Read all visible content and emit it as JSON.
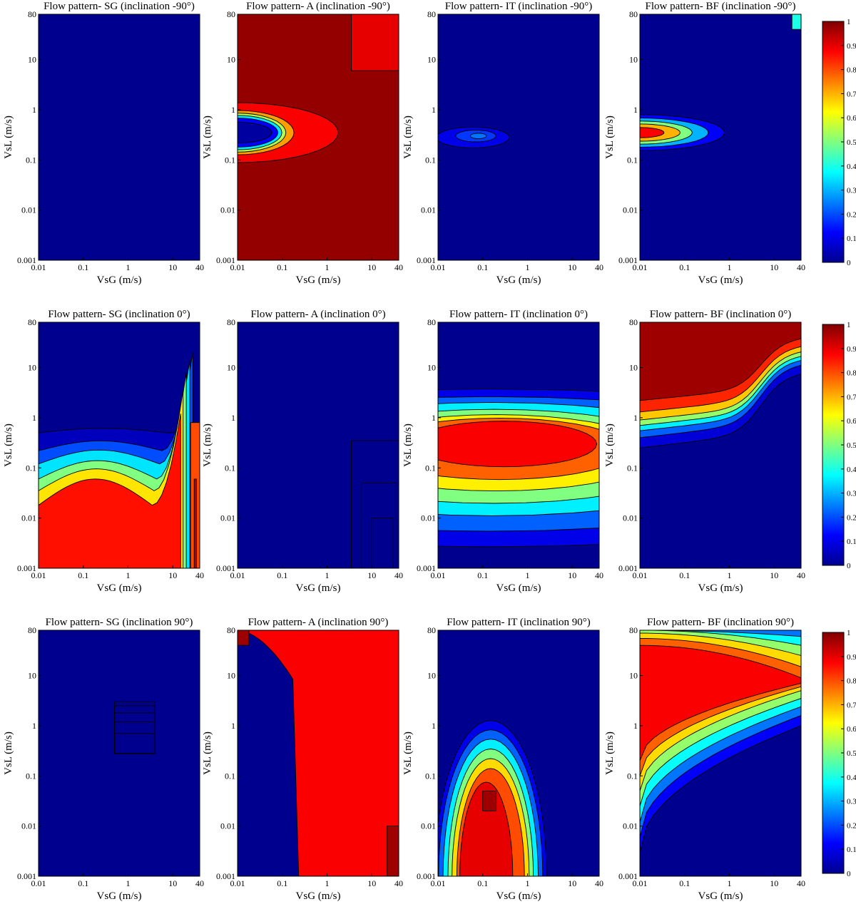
{
  "colormap": {
    "name": "jet",
    "stops": [
      "#00008f",
      "#0000ff",
      "#00ffff",
      "#ffff00",
      "#ff0000",
      "#800000"
    ]
  },
  "chart_data": [
    {
      "type": "heatmap",
      "title": "Flow pattern- SG (inclination -90°)",
      "xlabel": "VsG (m/s)",
      "ylabel": "VsL (m/s)",
      "xscale": "log",
      "yscale": "log",
      "xlim": [
        0.01,
        40
      ],
      "ylim": [
        0.001,
        80
      ],
      "xticks": [
        "0.01",
        "0.1",
        "1",
        "10",
        "40"
      ],
      "yticks": [
        "0.001",
        "0.01",
        "0.1",
        "1",
        "10",
        "80"
      ],
      "zlim": [
        0,
        1
      ],
      "regions": []
    },
    {
      "type": "heatmap",
      "title": "Flow pattern- A (inclination -90°)",
      "xlabel": "VsG (m/s)",
      "ylabel": "VsL (m/s)",
      "xscale": "log",
      "yscale": "log",
      "xlim": [
        0.01,
        40
      ],
      "ylim": [
        0.001,
        80
      ],
      "xticks": [
        "0.01",
        "0.1",
        "1",
        "10",
        "40"
      ],
      "yticks": [
        "0.001",
        "0.01",
        "0.1",
        "1",
        "10",
        "80"
      ],
      "zlim": [
        0,
        1
      ],
      "regions": [
        {
          "shape": "rect",
          "x": [
            0.01,
            40
          ],
          "y": [
            0.001,
            80
          ],
          "v": 0.98
        },
        {
          "shape": "rect",
          "x": [
            3.5,
            40
          ],
          "y": [
            6,
            80
          ],
          "v": 0.9
        },
        {
          "shape": "ellipse",
          "cx": 0.01,
          "cy": 0.35,
          "rx": 2.5,
          "ry": 3.6,
          "v": 0.88
        },
        {
          "shape": "ellipse",
          "cx": 0.01,
          "cy": 0.35,
          "rx": 1.4,
          "ry": 2.1,
          "v": 0.72
        },
        {
          "shape": "ellipse",
          "cx": 0.01,
          "cy": 0.35,
          "rx": 1.2,
          "ry": 1.7,
          "v": 0.55
        },
        {
          "shape": "ellipse",
          "cx": 0.01,
          "cy": 0.35,
          "rx": 1.1,
          "ry": 1.4,
          "v": 0.35
        },
        {
          "shape": "ellipse",
          "cx": 0.01,
          "cy": 0.35,
          "rx": 1.0,
          "ry": 1.1,
          "v": 0.12
        },
        {
          "shape": "ellipse",
          "cx": 0.01,
          "cy": 0.35,
          "rx": 0.85,
          "ry": 0.7,
          "v": 0.02
        }
      ]
    },
    {
      "type": "heatmap",
      "title": "Flow pattern- IT (inclination -90°)",
      "xlabel": "VsG (m/s)",
      "ylabel": "VsL (m/s)",
      "xscale": "log",
      "yscale": "log",
      "xlim": [
        0.01,
        40
      ],
      "ylim": [
        0.001,
        80
      ],
      "xticks": [
        "0.01",
        "0.1",
        "1",
        "10",
        "40"
      ],
      "yticks": [
        "0.001",
        "0.01",
        "0.1",
        "1",
        "10",
        "80"
      ],
      "zlim": [
        0,
        1
      ],
      "regions": [
        {
          "shape": "ellipse",
          "cx": 0.06,
          "cy": 0.28,
          "rx": 0.9,
          "ry": 0.7,
          "v": 0.1
        },
        {
          "shape": "ellipse",
          "cx": 0.07,
          "cy": 0.3,
          "rx": 0.5,
          "ry": 0.35,
          "v": 0.18
        },
        {
          "shape": "ellipse",
          "cx": 0.08,
          "cy": 0.3,
          "rx": 0.2,
          "ry": 0.15,
          "v": 0.24
        }
      ]
    },
    {
      "type": "heatmap",
      "title": "Flow pattern- BF (inclination -90°)",
      "xlabel": "VsG (m/s)",
      "ylabel": "VsL (m/s)",
      "xscale": "log",
      "yscale": "log",
      "xlim": [
        0.01,
        40
      ],
      "ylim": [
        0.001,
        80
      ],
      "xticks": [
        "0.01",
        "0.1",
        "1",
        "10",
        "40"
      ],
      "yticks": [
        "0.001",
        "0.01",
        "0.1",
        "1",
        "10",
        "80"
      ],
      "zlim": [
        0,
        1
      ],
      "regions": [
        {
          "shape": "ellipse",
          "cx": 0.01,
          "cy": 0.35,
          "rx": 2.1,
          "ry": 1.5,
          "v": 0.12
        },
        {
          "shape": "ellipse",
          "cx": 0.01,
          "cy": 0.35,
          "rx": 1.7,
          "ry": 1.1,
          "v": 0.3
        },
        {
          "shape": "ellipse",
          "cx": 0.01,
          "cy": 0.35,
          "rx": 1.3,
          "ry": 0.8,
          "v": 0.5
        },
        {
          "shape": "ellipse",
          "cx": 0.01,
          "cy": 0.35,
          "rx": 1.0,
          "ry": 0.55,
          "v": 0.7
        },
        {
          "shape": "ellipse",
          "cx": 0.01,
          "cy": 0.35,
          "rx": 0.6,
          "ry": 0.3,
          "v": 0.88
        },
        {
          "shape": "rect",
          "x": [
            25,
            40
          ],
          "y": [
            40,
            80
          ],
          "v": 0.4
        }
      ]
    },
    {
      "type": "heatmap",
      "title": "Flow pattern- SG (inclination 0°)",
      "xlabel": "VsG (m/s)",
      "ylabel": "VsL (m/s)",
      "xscale": "log",
      "yscale": "log",
      "xlim": [
        0.01,
        40
      ],
      "ylim": [
        0.001,
        80
      ],
      "xticks": [
        "0.01",
        "0.1",
        "1",
        "10",
        "40"
      ],
      "yticks": [
        "0.001",
        "0.01",
        "0.1",
        "1",
        "10",
        "80"
      ],
      "zlim": [
        0,
        1
      ],
      "regions": [
        {
          "shape": "ushape",
          "xmin": 0.01,
          "xmax": 40,
          "base": [
            0.001,
            0.5,
            0.001,
            0.5
          ],
          "v": 0.05
        },
        {
          "shape": "ushape",
          "xmin": 0.01,
          "xmax": 28,
          "base": [
            0.001,
            0.22,
            0.001,
            20
          ],
          "v": 0.2
        },
        {
          "shape": "ushape",
          "xmin": 0.01,
          "xmax": 24,
          "base": [
            0.001,
            0.12,
            0.001,
            14
          ],
          "v": 0.35
        },
        {
          "shape": "ushape",
          "xmin": 0.01,
          "xmax": 20,
          "base": [
            0.001,
            0.06,
            0.001,
            8
          ],
          "v": 0.5
        },
        {
          "shape": "ushape",
          "xmin": 0.01,
          "xmax": 17,
          "base": [
            0.001,
            0.035,
            0.001,
            3.5
          ],
          "v": 0.65
        },
        {
          "shape": "ushape",
          "xmin": 0.01,
          "xmax": 15,
          "base": [
            0.001,
            0.018,
            0.001,
            1.2
          ],
          "v": 0.86
        },
        {
          "shape": "rect",
          "x": [
            25,
            40
          ],
          "y": [
            0.001,
            0.8
          ],
          "v": 0.8
        },
        {
          "shape": "rect",
          "x": [
            30,
            34
          ],
          "y": [
            0.001,
            0.06
          ],
          "v": 0.95
        }
      ]
    },
    {
      "type": "heatmap",
      "title": "Flow pattern- A (inclination 0°)",
      "xlabel": "VsG (m/s)",
      "ylabel": "VsL (m/s)",
      "xscale": "log",
      "yscale": "log",
      "xlim": [
        0.01,
        40
      ],
      "ylim": [
        0.001,
        80
      ],
      "xticks": [
        "0.01",
        "0.1",
        "1",
        "10",
        "40"
      ],
      "yticks": [
        "0.001",
        "0.01",
        "0.1",
        "1",
        "10",
        "80"
      ],
      "zlim": [
        0,
        1
      ],
      "regions": [],
      "outlines": [
        {
          "x": [
            3.5,
            40
          ],
          "y": [
            0.001,
            0.35
          ]
        },
        {
          "x": [
            6,
            35
          ],
          "y": [
            0.001,
            0.05
          ]
        },
        {
          "x": [
            10,
            30
          ],
          "y": [
            0.001,
            0.01
          ]
        }
      ]
    },
    {
      "type": "heatmap",
      "title": "Flow pattern- IT (inclination 0°)",
      "xlabel": "VsG (m/s)",
      "ylabel": "VsL (m/s)",
      "xscale": "log",
      "yscale": "log",
      "xlim": [
        0.01,
        40
      ],
      "ylim": [
        0.001,
        80
      ],
      "xticks": [
        "0.01",
        "0.1",
        "1",
        "10",
        "40"
      ],
      "yticks": [
        "0.001",
        "0.01",
        "0.1",
        "1",
        "10",
        "80"
      ],
      "zlim": [
        0,
        1
      ],
      "regions": [
        {
          "shape": "ellipse",
          "cx": 0.12,
          "cy": 0.1,
          "rx": 12,
          "ry": 55,
          "v": 0.1
        },
        {
          "shape": "ellipse",
          "cx": 0.14,
          "cy": 0.12,
          "rx": 9,
          "ry": 30,
          "v": 0.22
        },
        {
          "shape": "ellipse",
          "cx": 0.16,
          "cy": 0.15,
          "rx": 6.5,
          "ry": 17,
          "v": 0.36
        },
        {
          "shape": "ellipse",
          "cx": 0.18,
          "cy": 0.17,
          "rx": 5,
          "ry": 10,
          "v": 0.5
        },
        {
          "shape": "ellipse",
          "cx": 0.2,
          "cy": 0.2,
          "rx": 4,
          "ry": 6,
          "v": 0.64
        },
        {
          "shape": "ellipse",
          "cx": 0.24,
          "cy": 0.24,
          "rx": 3.2,
          "ry": 3.8,
          "v": 0.78
        },
        {
          "shape": "ellipse",
          "cx": 0.3,
          "cy": 0.3,
          "rx": 2.3,
          "ry": 2.2,
          "v": 0.88
        }
      ]
    },
    {
      "type": "heatmap",
      "title": "Flow pattern- BF (inclination 0°)",
      "xlabel": "VsG (m/s)",
      "ylabel": "VsL (m/s)",
      "xscale": "log",
      "yscale": "log",
      "xlim": [
        0.01,
        40
      ],
      "ylim": [
        0.001,
        80
      ],
      "xticks": [
        "0.01",
        "0.1",
        "1",
        "10",
        "40"
      ],
      "yticks": [
        "0.001",
        "0.01",
        "0.1",
        "1",
        "10",
        "80"
      ],
      "zlim": [
        0,
        1
      ],
      "regions": [
        {
          "shape": "step",
          "x0": 0.01,
          "x1": 40,
          "y0": 0.25,
          "y1": 8,
          "v": 0.08
        },
        {
          "shape": "step",
          "x0": 0.01,
          "x1": 40,
          "y0": 0.4,
          "y1": 12,
          "v": 0.22
        },
        {
          "shape": "step",
          "x0": 0.01,
          "x1": 40,
          "y0": 0.55,
          "y1": 15,
          "v": 0.36
        },
        {
          "shape": "step",
          "x0": 0.01,
          "x1": 40,
          "y0": 0.7,
          "y1": 18,
          "v": 0.52
        },
        {
          "shape": "step",
          "x0": 0.01,
          "x1": 40,
          "y0": 0.9,
          "y1": 22,
          "v": 0.68
        },
        {
          "shape": "step",
          "x0": 0.01,
          "x1": 40,
          "y0": 1.3,
          "y1": 28,
          "v": 0.84
        },
        {
          "shape": "step",
          "x0": 0.01,
          "x1": 40,
          "y0": 2.2,
          "y1": 40,
          "v": 0.97
        }
      ]
    },
    {
      "type": "heatmap",
      "title": "Flow pattern- SG (inclination 90°)",
      "xlabel": "VsG (m/s)",
      "ylabel": "VsL (m/s)",
      "xscale": "log",
      "yscale": "log",
      "xlim": [
        0.01,
        40
      ],
      "ylim": [
        0.001,
        80
      ],
      "xticks": [
        "0.01",
        "0.1",
        "1",
        "10",
        "40"
      ],
      "yticks": [
        "0.001",
        "0.01",
        "0.1",
        "1",
        "10",
        "80"
      ],
      "zlim": [
        0,
        1
      ],
      "regions": [],
      "outlines": [
        {
          "x": [
            0.5,
            4
          ],
          "y": [
            0.28,
            3
          ]
        },
        {
          "x": [
            0.5,
            4
          ],
          "y": [
            0.28,
            2.5
          ]
        },
        {
          "x": [
            0.5,
            4
          ],
          "y": [
            0.28,
            1.8
          ]
        },
        {
          "x": [
            0.5,
            4
          ],
          "y": [
            0.28,
            1.2
          ]
        },
        {
          "x": [
            0.5,
            4
          ],
          "y": [
            0.28,
            0.7
          ]
        }
      ]
    },
    {
      "type": "heatmap",
      "title": "Flow pattern- A (inclination 90°)",
      "xlabel": "VsG (m/s)",
      "ylabel": "VsL (m/s)",
      "xscale": "log",
      "yscale": "log",
      "xlim": [
        0.01,
        40
      ],
      "ylim": [
        0.001,
        80
      ],
      "xticks": [
        "0.01",
        "0.1",
        "1",
        "10",
        "40"
      ],
      "yticks": [
        "0.001",
        "0.01",
        "0.1",
        "1",
        "10",
        "80"
      ],
      "zlim": [
        0,
        1
      ],
      "regions": [
        {
          "shape": "arc",
          "v": 0.12,
          "spread": 1.0
        },
        {
          "shape": "arc",
          "v": 0.22,
          "spread": 0.8
        },
        {
          "shape": "arc",
          "v": 0.4,
          "spread": 0.62
        },
        {
          "shape": "arc",
          "v": 0.55,
          "spread": 0.5
        },
        {
          "shape": "arc",
          "v": 0.72,
          "spread": 0.38
        },
        {
          "shape": "arc",
          "v": 0.88,
          "spread": 0.26
        },
        {
          "shape": "rect",
          "x": [
            22,
            40
          ],
          "y": [
            0.001,
            0.01
          ],
          "v": 0.97
        },
        {
          "shape": "rect",
          "x": [
            0.01,
            0.018
          ],
          "y": [
            40,
            80
          ],
          "v": 0.97
        }
      ]
    },
    {
      "type": "heatmap",
      "title": "Flow pattern- IT (inclination 90°)",
      "xlabel": "VsG (m/s)",
      "ylabel": "VsL (m/s)",
      "xscale": "log",
      "yscale": "log",
      "xlim": [
        0.01,
        40
      ],
      "ylim": [
        0.001,
        80
      ],
      "xticks": [
        "0.01",
        "0.1",
        "1",
        "10",
        "40"
      ],
      "yticks": [
        "0.001",
        "0.01",
        "0.1",
        "1",
        "10",
        "80"
      ],
      "zlim": [
        0,
        1
      ],
      "regions": [
        {
          "shape": "lobe",
          "cx": 0.15,
          "cy": 0.01,
          "rx": 60,
          "ry": 900,
          "v": 0.1
        },
        {
          "shape": "lobe",
          "cx": 0.15,
          "cy": 0.01,
          "rx": 45,
          "ry": 600,
          "v": 0.22
        },
        {
          "shape": "lobe",
          "cx": 0.15,
          "cy": 0.01,
          "rx": 32,
          "ry": 400,
          "v": 0.36
        },
        {
          "shape": "lobe",
          "cx": 0.15,
          "cy": 0.01,
          "rx": 22,
          "ry": 260,
          "v": 0.5
        },
        {
          "shape": "lobe",
          "cx": 0.15,
          "cy": 0.01,
          "rx": 16,
          "ry": 170,
          "v": 0.66
        },
        {
          "shape": "lobe",
          "cx": 0.15,
          "cy": 0.01,
          "rx": 11,
          "ry": 110,
          "v": 0.8
        },
        {
          "shape": "lobe",
          "cx": 0.12,
          "cy": 0.01,
          "rx": 6,
          "ry": 60,
          "v": 0.9
        },
        {
          "shape": "rect",
          "x": [
            0.1,
            0.2
          ],
          "y": [
            0.02,
            0.05
          ],
          "v": 0.97
        }
      ]
    },
    {
      "type": "heatmap",
      "title": "Flow pattern- BF (inclination 90°)",
      "xlabel": "VsG (m/s)",
      "ylabel": "VsL (m/s)",
      "xscale": "log",
      "yscale": "log",
      "xlim": [
        0.01,
        40
      ],
      "ylim": [
        0.001,
        80
      ],
      "xticks": [
        "0.01",
        "0.1",
        "1",
        "10",
        "40"
      ],
      "yticks": [
        "0.001",
        "0.01",
        "0.1",
        "1",
        "10",
        "80"
      ],
      "zlim": [
        0,
        1
      ],
      "regions": [
        {
          "shape": "band",
          "lo": [
            0.003,
            1.0
          ],
          "hi": [
            80,
            80
          ],
          "v": 0.12
        },
        {
          "shape": "band",
          "lo": [
            0.006,
            1.6
          ],
          "hi": [
            80,
            80
          ],
          "v": 0.24
        },
        {
          "shape": "band",
          "lo": [
            0.012,
            2.4
          ],
          "hi": [
            80,
            60
          ],
          "v": 0.38
        },
        {
          "shape": "band",
          "lo": [
            0.025,
            3.5
          ],
          "hi": [
            80,
            40
          ],
          "v": 0.52
        },
        {
          "shape": "band",
          "lo": [
            0.05,
            5
          ],
          "hi": [
            70,
            25
          ],
          "v": 0.66
        },
        {
          "shape": "band",
          "lo": [
            0.1,
            6
          ],
          "hi": [
            55,
            15
          ],
          "v": 0.78
        },
        {
          "shape": "band",
          "lo": [
            0.2,
            7
          ],
          "hi": [
            40,
            9
          ],
          "v": 0.88
        }
      ]
    }
  ],
  "colorbars": [
    {
      "ticks": [
        "1",
        "0.9",
        "0.8",
        "0.7",
        "0.6",
        "0.5",
        "0.4",
        "0.3",
        "0.2",
        "0.1",
        "0"
      ]
    },
    {
      "ticks": [
        "1",
        "0.9",
        "0.8",
        "0.7",
        "0.6",
        "0.5",
        "0.4",
        "0.3",
        "0.2",
        "0.1",
        "0"
      ]
    },
    {
      "ticks": [
        "1",
        "0.9",
        "0.8",
        "0.7",
        "0.6",
        "0.5",
        "0.4",
        "0.3",
        "0.2",
        "0.1",
        "0"
      ]
    }
  ]
}
